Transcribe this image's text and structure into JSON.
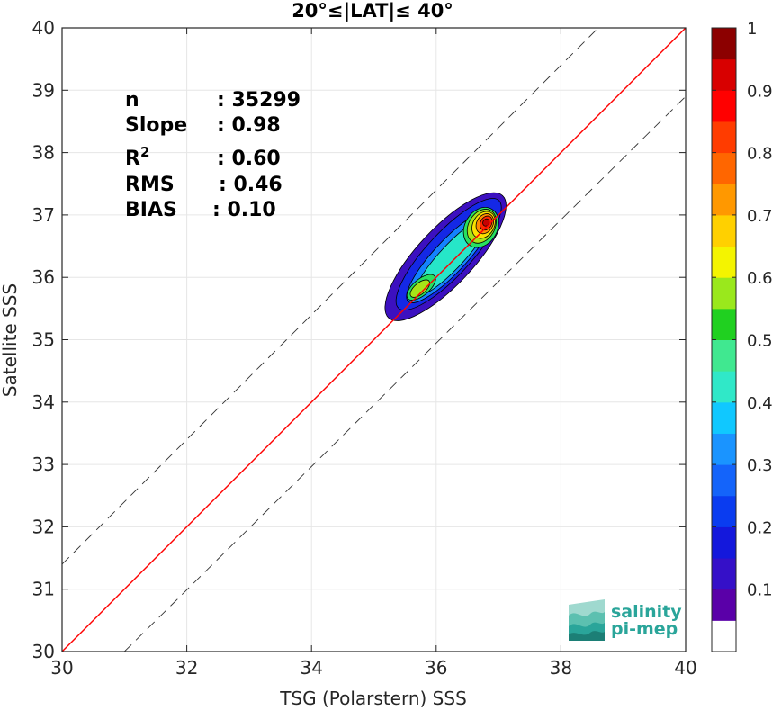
{
  "chart_data": {
    "type": "contour",
    "title": "20°≤|LAT|≤ 40°",
    "xlabel": "TSG (Polarstern) SSS",
    "ylabel": "Satellite SSS",
    "xlim": [
      30,
      40
    ],
    "ylim": [
      30,
      40
    ],
    "xticks": [
      "30",
      "32",
      "34",
      "36",
      "38",
      "40"
    ],
    "yticks": [
      "30",
      "31",
      "32",
      "33",
      "34",
      "35",
      "36",
      "37",
      "38",
      "39",
      "40"
    ],
    "grid": true,
    "stats": [
      {
        "label": "n",
        "value": ": 35299"
      },
      {
        "label": "Slope",
        "value": ": 0.98"
      },
      {
        "label": "R",
        "sup": "2",
        "value": ": 0.60"
      },
      {
        "label": "RMS",
        "value": ": 0.46"
      },
      {
        "label": "BIAS",
        "value": ": 0.10"
      }
    ],
    "reference_lines": [
      {
        "name": "one-to-one",
        "color": "#333333",
        "style": "solid",
        "points": [
          [
            30,
            30
          ],
          [
            40,
            40
          ]
        ]
      },
      {
        "name": "plus-one",
        "color": "#333333",
        "style": "dashed",
        "points": [
          [
            30,
            31.4
          ],
          [
            40,
            41.4
          ]
        ]
      },
      {
        "name": "minus-one",
        "color": "#333333",
        "style": "dashed",
        "points": [
          [
            31,
            30
          ],
          [
            40,
            38.9
          ]
        ]
      },
      {
        "name": "regression",
        "color": "#ff0000",
        "style": "solid",
        "points": [
          [
            30,
            30
          ],
          [
            40,
            40
          ]
        ]
      }
    ],
    "contour_levels": [
      {
        "level": 0.05,
        "color": "#3c10c0",
        "center": [
          36.15,
          36.33
        ],
        "rx": 1.34,
        "ry": 0.45,
        "angle_deg": 47
      },
      {
        "level": 0.15,
        "color": "#1428e6",
        "center": [
          36.2,
          36.37
        ],
        "rx": 1.18,
        "ry": 0.35,
        "angle_deg": 47
      },
      {
        "level": 0.25,
        "color": "#1482ff",
        "center": [
          36.22,
          36.33
        ],
        "rx": 0.98,
        "ry": 0.26,
        "angle_deg": 47
      },
      {
        "level": 0.35,
        "color": "#26e6c8",
        "center": [
          36.25,
          36.33
        ],
        "rx": 0.83,
        "ry": 0.19,
        "angle_deg": 47
      },
      {
        "level": 0.45,
        "color": "#28e060",
        "center": [
          36.72,
          36.8
        ],
        "rx": 0.34,
        "ry": 0.26,
        "angle_deg": 60
      },
      {
        "level": 0.45,
        "color": "#28e060",
        "center": [
          35.76,
          35.84
        ],
        "rx": 0.28,
        "ry": 0.13,
        "angle_deg": 40
      },
      {
        "level": 0.55,
        "color": "#a6e418",
        "center": [
          36.73,
          36.82
        ],
        "rx": 0.29,
        "ry": 0.21,
        "angle_deg": 60
      },
      {
        "level": 0.55,
        "color": "#a6e418",
        "center": [
          35.74,
          35.82
        ],
        "rx": 0.19,
        "ry": 0.09,
        "angle_deg": 40
      },
      {
        "level": 0.65,
        "color": "#fae000",
        "center": [
          36.76,
          36.84
        ],
        "rx": 0.23,
        "ry": 0.17,
        "angle_deg": 60
      },
      {
        "level": 0.75,
        "color": "#ff8c00",
        "center": [
          36.78,
          36.86
        ],
        "rx": 0.17,
        "ry": 0.13,
        "angle_deg": 60
      },
      {
        "level": 0.85,
        "color": "#ff2800",
        "center": [
          36.8,
          36.87
        ],
        "rx": 0.12,
        "ry": 0.09,
        "angle_deg": 60
      },
      {
        "level": 0.95,
        "color": "#c80000",
        "center": [
          36.8,
          36.88
        ],
        "rx": 0.06,
        "ry": 0.05,
        "angle_deg": 60
      }
    ],
    "colorbar": {
      "ticks": [
        "0.1",
        "0.2",
        "0.3",
        "0.4",
        "0.5",
        "0.6",
        "0.7",
        "0.8",
        "0.9",
        "1"
      ],
      "colors": [
        "#ffffff",
        "#5a00a8",
        "#3510c8",
        "#1418dc",
        "#0a3cf0",
        "#1464fa",
        "#1a94ff",
        "#10c8ff",
        "#30e8c8",
        "#40e890",
        "#20d020",
        "#9ae81c",
        "#f4f400",
        "#ffd000",
        "#ff9800",
        "#ff6600",
        "#ff3c00",
        "#ff0000",
        "#d80000",
        "#8c0000"
      ]
    },
    "logo": {
      "line1": "salinity",
      "line2": "pi-mep"
    }
  }
}
